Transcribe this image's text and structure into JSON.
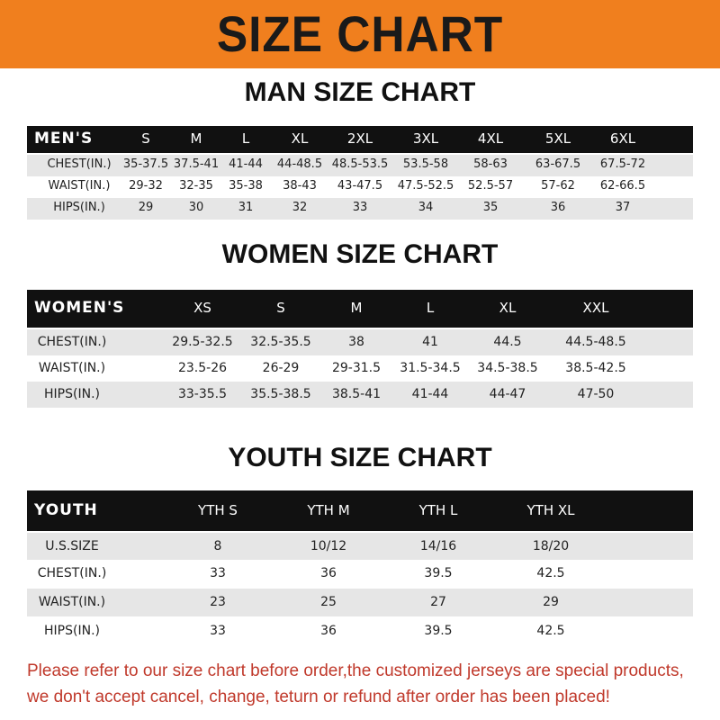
{
  "banner": {
    "title": "SIZE CHART"
  },
  "tables": [
    {
      "title": "MAN SIZE CHART",
      "header": [
        "MEN'S",
        "S",
        "M",
        "L",
        "XL",
        "2XL",
        "3XL",
        "4XL",
        "5XL",
        "6XL"
      ],
      "rows": [
        [
          "CHEST(IN.)",
          "35-37.5",
          "37.5-41",
          "41-44",
          "44-48.5",
          "48.5-53.5",
          "53.5-58",
          "58-63",
          "63-67.5",
          "67.5-72"
        ],
        [
          "WAIST(IN.)",
          "29-32",
          "32-35",
          "35-38",
          "38-43",
          "43-47.5",
          "47.5-52.5",
          "52.5-57",
          "57-62",
          "62-66.5"
        ],
        [
          "HIPS(IN.)",
          "29",
          "30",
          "31",
          "32",
          "33",
          "34",
          "35",
          "36",
          "37"
        ]
      ]
    },
    {
      "title": "WOMEN SIZE CHART",
      "header": [
        "WOMEN'S",
        "XS",
        "S",
        "M",
        "L",
        "XL",
        "XXL"
      ],
      "rows": [
        [
          "CHEST(IN.)",
          "29.5-32.5",
          "32.5-35.5",
          "38",
          "41",
          "44.5",
          "44.5-48.5"
        ],
        [
          "WAIST(IN.)",
          "23.5-26",
          "26-29",
          "29-31.5",
          "31.5-34.5",
          "34.5-38.5",
          "38.5-42.5"
        ],
        [
          "HIPS(IN.)",
          "33-35.5",
          "35.5-38.5",
          "38.5-41",
          "41-44",
          "44-47",
          "47-50"
        ]
      ]
    },
    {
      "title": "YOUTH SIZE CHART",
      "header": [
        "YOUTH",
        "YTH S",
        "YTH M",
        "YTH L",
        "YTH XL"
      ],
      "rows": [
        [
          "U.S.SIZE",
          "8",
          "10/12",
          "14/16",
          "18/20"
        ],
        [
          "CHEST(IN.)",
          "33",
          "36",
          "39.5",
          "42.5"
        ],
        [
          "WAIST(IN.)",
          "23",
          "25",
          "27",
          "29"
        ],
        [
          "HIPS(IN.)",
          "33",
          "36",
          "39.5",
          "42.5"
        ]
      ]
    }
  ],
  "footer": [
    "Please refer to our size chart before order,the customized jerseys are special products,",
    "we don't accept cancel, change, teturn or refund after order has been placed!"
  ]
}
